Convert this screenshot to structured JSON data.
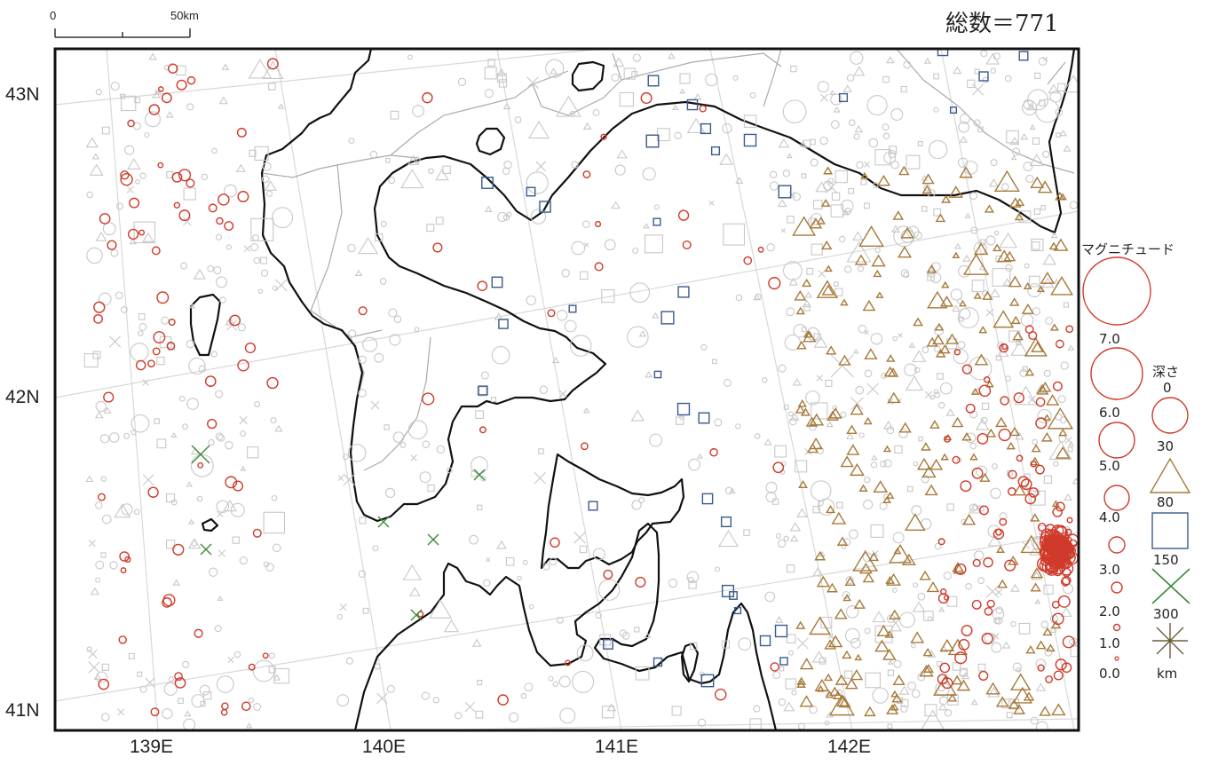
{
  "total_label": "総数＝771",
  "scale_bar": {
    "start": "0",
    "end": "50km"
  },
  "axes": {
    "lat_ticks": [
      "43N",
      "42N",
      "41N"
    ],
    "lon_ticks": [
      "139E",
      "140E",
      "141E",
      "142E"
    ]
  },
  "legend": {
    "magnitude_title": "マグニチュード",
    "magnitude_levels": [
      "7.0",
      "6.0",
      "5.0",
      "4.0",
      "3.0",
      "2.0",
      "1.0",
      "0.0"
    ],
    "depth_title": "深さ",
    "depth_levels": [
      "0",
      "30",
      "80",
      "150",
      "300"
    ],
    "depth_unit": "km"
  },
  "colors": {
    "shallow": "#d03a2a",
    "mid": "#a77a3a",
    "deep": "#3a5a8c",
    "very_deep": "#3a8a3a",
    "deepest": "#6e5a3a",
    "background_event": "#c8c8c8",
    "coast": "#111111",
    "boundary": "#aaaaaa",
    "grid": "#d8d8d8"
  }
}
